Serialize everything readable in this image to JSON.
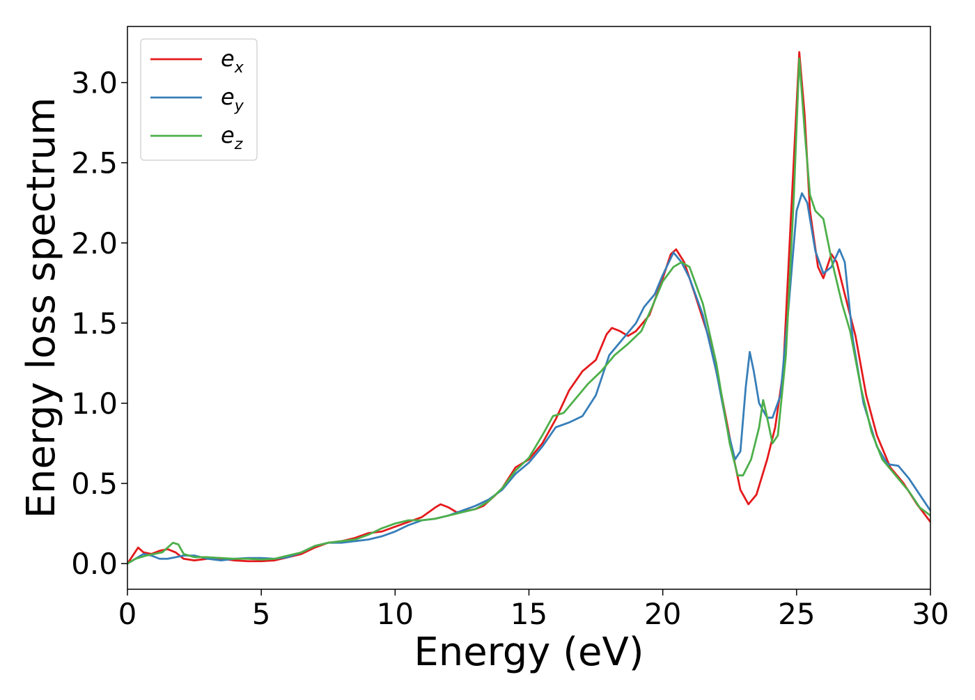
{
  "chart_data": {
    "type": "line",
    "title": "",
    "xlabel": "Energy (eV)",
    "ylabel": "Energy loss spectrum",
    "xlim": [
      0,
      30
    ],
    "ylim": [
      -0.16,
      3.35
    ],
    "x_ticks": [
      0,
      5,
      10,
      15,
      20,
      25,
      30
    ],
    "y_ticks": [
      0.0,
      0.5,
      1.0,
      1.5,
      2.0,
      2.5,
      3.0
    ],
    "x_tick_labels": [
      "0",
      "5",
      "10",
      "15",
      "20",
      "25",
      "30"
    ],
    "y_tick_labels": [
      "0.0",
      "0.5",
      "1.0",
      "1.5",
      "2.0",
      "2.5",
      "3.0"
    ],
    "grid": false,
    "legend_position": "upper-left",
    "series": [
      {
        "name": "e_x",
        "label_base": "e",
        "label_sub": "x",
        "color": "#e41a1c",
        "points": [
          [
            0,
            0.0
          ],
          [
            0.2,
            0.05
          ],
          [
            0.4,
            0.1
          ],
          [
            0.6,
            0.07
          ],
          [
            0.9,
            0.06
          ],
          [
            1.2,
            0.08
          ],
          [
            1.5,
            0.09
          ],
          [
            1.8,
            0.07
          ],
          [
            2.1,
            0.03
          ],
          [
            2.5,
            0.02
          ],
          [
            3.0,
            0.03
          ],
          [
            3.5,
            0.03
          ],
          [
            4.0,
            0.02
          ],
          [
            4.5,
            0.015
          ],
          [
            5.0,
            0.015
          ],
          [
            5.5,
            0.02
          ],
          [
            6.0,
            0.04
          ],
          [
            6.5,
            0.06
          ],
          [
            7.0,
            0.1
          ],
          [
            7.5,
            0.13
          ],
          [
            8.0,
            0.14
          ],
          [
            8.5,
            0.16
          ],
          [
            9.0,
            0.19
          ],
          [
            9.5,
            0.2
          ],
          [
            10.0,
            0.23
          ],
          [
            10.5,
            0.26
          ],
          [
            11.0,
            0.29
          ],
          [
            11.5,
            0.35
          ],
          [
            11.7,
            0.37
          ],
          [
            12.0,
            0.35
          ],
          [
            12.3,
            0.32
          ],
          [
            12.7,
            0.33
          ],
          [
            13.0,
            0.34
          ],
          [
            13.3,
            0.36
          ],
          [
            13.7,
            0.42
          ],
          [
            14.0,
            0.47
          ],
          [
            14.5,
            0.6
          ],
          [
            15.0,
            0.65
          ],
          [
            15.5,
            0.75
          ],
          [
            16.0,
            0.9
          ],
          [
            16.5,
            1.08
          ],
          [
            17.0,
            1.2
          ],
          [
            17.5,
            1.27
          ],
          [
            17.9,
            1.43
          ],
          [
            18.1,
            1.47
          ],
          [
            18.4,
            1.45
          ],
          [
            18.7,
            1.42
          ],
          [
            19.0,
            1.45
          ],
          [
            19.5,
            1.55
          ],
          [
            20.0,
            1.78
          ],
          [
            20.3,
            1.93
          ],
          [
            20.5,
            1.96
          ],
          [
            20.8,
            1.88
          ],
          [
            21.2,
            1.68
          ],
          [
            21.7,
            1.42
          ],
          [
            22.2,
            1.05
          ],
          [
            22.6,
            0.7
          ],
          [
            22.9,
            0.46
          ],
          [
            23.2,
            0.37
          ],
          [
            23.5,
            0.43
          ],
          [
            23.9,
            0.65
          ],
          [
            24.2,
            0.85
          ],
          [
            24.5,
            1.2
          ],
          [
            24.8,
            2.2
          ],
          [
            25.1,
            3.19
          ],
          [
            25.3,
            2.8
          ],
          [
            25.5,
            2.2
          ],
          [
            25.8,
            1.85
          ],
          [
            26.0,
            1.78
          ],
          [
            26.3,
            1.93
          ],
          [
            26.5,
            1.88
          ],
          [
            26.8,
            1.68
          ],
          [
            27.2,
            1.42
          ],
          [
            27.6,
            1.05
          ],
          [
            28.0,
            0.8
          ],
          [
            28.5,
            0.6
          ],
          [
            29.0,
            0.5
          ],
          [
            29.5,
            0.37
          ],
          [
            30.0,
            0.26
          ]
        ]
      },
      {
        "name": "e_y",
        "label_base": "e",
        "label_sub": "y",
        "color": "#377eb8",
        "points": [
          [
            0,
            0.0
          ],
          [
            0.3,
            0.03
          ],
          [
            0.6,
            0.06
          ],
          [
            0.9,
            0.05
          ],
          [
            1.2,
            0.03
          ],
          [
            1.5,
            0.03
          ],
          [
            1.8,
            0.04
          ],
          [
            2.1,
            0.05
          ],
          [
            2.5,
            0.05
          ],
          [
            3.0,
            0.03
          ],
          [
            3.5,
            0.02
          ],
          [
            4.0,
            0.03
          ],
          [
            4.5,
            0.035
          ],
          [
            5.0,
            0.035
          ],
          [
            5.5,
            0.03
          ],
          [
            6.0,
            0.04
          ],
          [
            6.5,
            0.07
          ],
          [
            7.0,
            0.11
          ],
          [
            7.5,
            0.13
          ],
          [
            8.0,
            0.13
          ],
          [
            8.5,
            0.14
          ],
          [
            9.0,
            0.15
          ],
          [
            9.5,
            0.17
          ],
          [
            10.0,
            0.2
          ],
          [
            10.5,
            0.24
          ],
          [
            11.0,
            0.27
          ],
          [
            11.5,
            0.28
          ],
          [
            12.0,
            0.3
          ],
          [
            12.5,
            0.33
          ],
          [
            13.0,
            0.36
          ],
          [
            13.5,
            0.4
          ],
          [
            14.0,
            0.46
          ],
          [
            14.5,
            0.56
          ],
          [
            15.0,
            0.63
          ],
          [
            15.5,
            0.73
          ],
          [
            16.0,
            0.85
          ],
          [
            16.5,
            0.88
          ],
          [
            17.0,
            0.92
          ],
          [
            17.5,
            1.05
          ],
          [
            18.0,
            1.3
          ],
          [
            18.5,
            1.4
          ],
          [
            19.0,
            1.5
          ],
          [
            19.3,
            1.6
          ],
          [
            19.7,
            1.68
          ],
          [
            20.0,
            1.8
          ],
          [
            20.4,
            1.94
          ],
          [
            20.7,
            1.88
          ],
          [
            21.0,
            1.78
          ],
          [
            21.5,
            1.55
          ],
          [
            22.0,
            1.2
          ],
          [
            22.4,
            0.85
          ],
          [
            22.7,
            0.65
          ],
          [
            22.9,
            0.7
          ],
          [
            23.1,
            1.1
          ],
          [
            23.25,
            1.32
          ],
          [
            23.4,
            1.2
          ],
          [
            23.6,
            1.0
          ],
          [
            23.9,
            0.91
          ],
          [
            24.1,
            0.91
          ],
          [
            24.4,
            1.05
          ],
          [
            24.7,
            1.6
          ],
          [
            25.0,
            2.2
          ],
          [
            25.2,
            2.31
          ],
          [
            25.4,
            2.25
          ],
          [
            25.7,
            1.95
          ],
          [
            26.0,
            1.81
          ],
          [
            26.3,
            1.85
          ],
          [
            26.6,
            1.96
          ],
          [
            26.8,
            1.88
          ],
          [
            27.1,
            1.4
          ],
          [
            27.5,
            1.0
          ],
          [
            28.0,
            0.73
          ],
          [
            28.4,
            0.62
          ],
          [
            28.8,
            0.61
          ],
          [
            29.2,
            0.53
          ],
          [
            29.6,
            0.43
          ],
          [
            30.0,
            0.33
          ]
        ]
      },
      {
        "name": "e_z",
        "label_base": "e",
        "label_sub": "z",
        "color": "#4daf4a",
        "points": [
          [
            0,
            0.0
          ],
          [
            0.3,
            0.03
          ],
          [
            0.7,
            0.05
          ],
          [
            1.0,
            0.06
          ],
          [
            1.3,
            0.07
          ],
          [
            1.5,
            0.1
          ],
          [
            1.7,
            0.13
          ],
          [
            1.9,
            0.12
          ],
          [
            2.1,
            0.06
          ],
          [
            2.5,
            0.04
          ],
          [
            3.0,
            0.04
          ],
          [
            3.5,
            0.035
          ],
          [
            4.0,
            0.03
          ],
          [
            4.5,
            0.03
          ],
          [
            5.0,
            0.025
          ],
          [
            5.5,
            0.03
          ],
          [
            6.0,
            0.05
          ],
          [
            6.5,
            0.07
          ],
          [
            7.0,
            0.11
          ],
          [
            7.5,
            0.13
          ],
          [
            8.0,
            0.14
          ],
          [
            8.5,
            0.15
          ],
          [
            9.0,
            0.18
          ],
          [
            9.5,
            0.22
          ],
          [
            10.0,
            0.25
          ],
          [
            10.5,
            0.27
          ],
          [
            11.0,
            0.27
          ],
          [
            11.5,
            0.28
          ],
          [
            12.0,
            0.3
          ],
          [
            12.5,
            0.32
          ],
          [
            13.0,
            0.34
          ],
          [
            13.5,
            0.39
          ],
          [
            14.0,
            0.47
          ],
          [
            14.5,
            0.58
          ],
          [
            15.0,
            0.66
          ],
          [
            15.5,
            0.8
          ],
          [
            15.9,
            0.92
          ],
          [
            16.3,
            0.94
          ],
          [
            16.7,
            1.02
          ],
          [
            17.2,
            1.12
          ],
          [
            17.7,
            1.2
          ],
          [
            18.2,
            1.3
          ],
          [
            18.7,
            1.37
          ],
          [
            19.2,
            1.45
          ],
          [
            19.6,
            1.6
          ],
          [
            20.0,
            1.76
          ],
          [
            20.4,
            1.85
          ],
          [
            20.7,
            1.88
          ],
          [
            21.0,
            1.85
          ],
          [
            21.5,
            1.62
          ],
          [
            22.0,
            1.25
          ],
          [
            22.5,
            0.75
          ],
          [
            22.8,
            0.55
          ],
          [
            23.0,
            0.55
          ],
          [
            23.3,
            0.65
          ],
          [
            23.6,
            0.85
          ],
          [
            23.75,
            1.02
          ],
          [
            23.85,
            0.95
          ],
          [
            24.1,
            0.75
          ],
          [
            24.3,
            0.8
          ],
          [
            24.6,
            1.3
          ],
          [
            24.9,
            2.3
          ],
          [
            25.1,
            3.15
          ],
          [
            25.3,
            2.7
          ],
          [
            25.5,
            2.3
          ],
          [
            25.7,
            2.2
          ],
          [
            26.0,
            2.15
          ],
          [
            26.3,
            1.9
          ],
          [
            26.7,
            1.62
          ],
          [
            27.0,
            1.45
          ],
          [
            27.4,
            1.1
          ],
          [
            27.8,
            0.82
          ],
          [
            28.2,
            0.65
          ],
          [
            28.7,
            0.55
          ],
          [
            29.2,
            0.45
          ],
          [
            29.6,
            0.35
          ],
          [
            30.0,
            0.3
          ]
        ]
      }
    ]
  }
}
